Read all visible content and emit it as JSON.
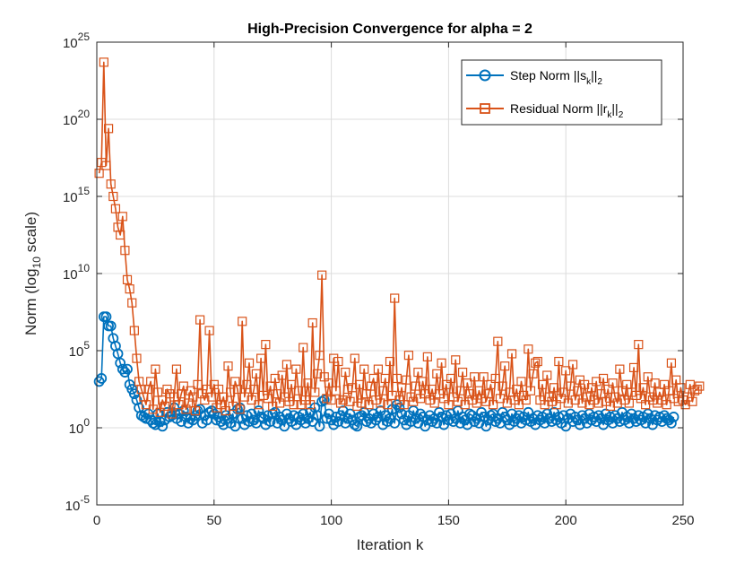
{
  "chart_data": {
    "type": "line",
    "title": "High-Precision Convergence for alpha = 2",
    "xlabel": "Iteration k",
    "ylabel": {
      "main": "Norm (log",
      "sub": "10",
      "tail": " scale)"
    },
    "xlim": [
      0,
      250
    ],
    "ylim_exponent": [
      -5,
      25
    ],
    "yscale": "log",
    "xticks": [
      0,
      50,
      100,
      150,
      200,
      250
    ],
    "yticks_exponent": [
      -5,
      0,
      5,
      10,
      15,
      20,
      25
    ],
    "ytick_base": "10",
    "grid": true,
    "legend_position": "top-right",
    "series": [
      {
        "name": "Step Norm ||s_k||_2",
        "legend": {
          "main": "Step Norm ||s",
          "sub": "k",
          "mid": "||",
          "sub2": "2"
        },
        "color": "#0072BD",
        "marker": "circle",
        "x_start": 1,
        "log10_values": [
          3.0,
          3.2,
          7.2,
          7.2,
          6.6,
          6.6,
          5.8,
          5.3,
          4.8,
          4.2,
          3.8,
          3.6,
          3.8,
          2.8,
          2.5,
          2.2,
          1.8,
          1.3,
          0.8,
          0.7,
          0.6,
          0.9,
          0.5,
          0.3,
          0.2,
          0.9,
          0.4,
          0.1,
          0.5,
          1.0,
          0.7,
          0.8,
          1.3,
          0.6,
          0.9,
          0.4,
          1.1,
          0.7,
          0.3,
          0.6,
          0.5,
          0.8,
          1.1,
          1.2,
          0.3,
          0.8,
          0.5,
          1.0,
          1.1,
          0.9,
          0.5,
          0.7,
          0.4,
          0.2,
          0.8,
          0.6,
          0.3,
          0.9,
          0.1,
          1.2,
          1.3,
          0.6,
          0.2,
          0.8,
          0.4,
          0.9,
          0.5,
          0.3,
          1.1,
          0.7,
          0.6,
          0.2,
          0.8,
          0.4,
          0.9,
          1.0,
          0.3,
          0.7,
          0.5,
          0.1,
          0.9,
          0.6,
          0.4,
          0.8,
          0.2,
          0.7,
          0.5,
          0.9,
          0.3,
          0.6,
          1.0,
          0.4,
          1.3,
          0.8,
          0.1,
          1.7,
          1.8,
          0.6,
          0.9,
          0.5,
          0.2,
          0.7,
          0.4,
          0.8,
          1.1,
          0.3,
          0.6,
          0.9,
          0.5,
          0.2,
          0.1,
          0.7,
          0.8,
          1.0,
          0.4,
          0.6,
          0.3,
          0.9,
          0.5,
          0.7,
          1.1,
          0.2,
          0.8,
          0.4,
          0.6,
          1.2,
          0.3,
          1.5,
          1.3,
          0.9,
          0.5,
          0.2,
          0.8,
          0.4,
          1.1,
          0.6,
          0.3,
          0.9,
          0.7,
          0.1,
          0.5,
          0.8,
          0.4,
          0.6,
          0.3,
          1.0,
          0.7,
          0.2,
          0.8,
          0.5,
          0.9,
          0.4,
          0.6,
          1.1,
          0.3,
          0.7,
          0.5,
          0.2,
          0.9,
          0.8,
          0.4,
          0.6,
          0.3,
          1.0,
          0.7,
          0.1,
          0.5,
          0.8,
          0.9,
          0.4,
          0.6,
          0.3,
          1.0,
          0.7,
          0.5,
          0.2,
          0.9,
          0.4,
          0.6,
          0.8,
          0.3,
          0.7,
          0.5,
          1.0,
          0.4,
          0.6,
          0.2,
          0.8,
          0.5,
          0.7,
          0.3,
          0.9,
          0.6,
          0.4,
          1.0,
          0.5,
          0.7,
          0.3,
          0.8,
          0.1,
          0.6,
          0.9,
          0.4,
          0.7,
          0.5,
          0.2,
          0.8,
          0.6,
          0.3,
          0.9,
          0.5,
          0.7,
          0.4,
          0.8,
          0.6,
          0.2,
          0.9,
          0.5,
          0.7,
          0.3,
          0.8,
          0.6,
          0.4,
          1.0,
          0.5,
          0.7,
          0.3,
          0.9,
          0.6,
          0.4,
          0.8,
          0.5,
          0.7,
          0.3,
          0.9,
          0.6,
          0.2,
          0.8,
          0.5,
          0.7,
          0.4,
          0.8,
          0.6,
          0.5,
          0.3,
          0.7
        ]
      },
      {
        "name": "Residual Norm ||r_k||_2",
        "legend": {
          "main": "Residual Norm ||r",
          "sub": "k",
          "mid": "||",
          "sub2": "2"
        },
        "color": "#D95319",
        "marker": "square",
        "x_start": 1,
        "log10_values": [
          16.5,
          17.2,
          23.7,
          17.0,
          19.4,
          15.8,
          15.0,
          14.2,
          13.0,
          12.5,
          13.7,
          11.5,
          9.6,
          9.0,
          8.1,
          6.3,
          4.5,
          3.0,
          2.5,
          2.0,
          1.5,
          2.5,
          3.0,
          1.2,
          3.8,
          2.3,
          1.0,
          1.8,
          1.4,
          2.5,
          2.2,
          0.9,
          2.0,
          3.8,
          1.5,
          2.2,
          2.7,
          1.2,
          1.6,
          2.4,
          2.0,
          1.1,
          2.8,
          7.0,
          2.2,
          1.8,
          2.5,
          6.3,
          2.0,
          2.8,
          1.3,
          2.5,
          1.5,
          2.0,
          1.1,
          4.0,
          2.3,
          1.4,
          3.0,
          2.5,
          1.2,
          6.9,
          2.0,
          2.8,
          4.2,
          1.8,
          2.5,
          3.5,
          1.5,
          4.5,
          2.1,
          5.4,
          1.9,
          2.7,
          1.4,
          3.2,
          2.2,
          1.6,
          3.4,
          2.0,
          4.1,
          1.7,
          2.8,
          1.5,
          3.8,
          2.4,
          1.5,
          5.2,
          1.8,
          2.9,
          1.5,
          6.8,
          2.3,
          3.5,
          4.7,
          9.9,
          3.3,
          1.9,
          2.9,
          1.8,
          4.5,
          2.4,
          4.3,
          1.6,
          1.8,
          3.6,
          2.5,
          1.7,
          2.6,
          4.5,
          1.4,
          2.8,
          1.6,
          3.8,
          2.2,
          1.5,
          2.7,
          3.2,
          1.8,
          3.8,
          1.6,
          2.4,
          3.2,
          1.5,
          4.3,
          2.1,
          8.4,
          3.2,
          1.8,
          2.6,
          1.5,
          3.1,
          4.7,
          2.0,
          1.7,
          2.7,
          3.6,
          1.9,
          3.0,
          2.2,
          4.6,
          1.8,
          2.5,
          1.6,
          3.5,
          2.2,
          4.2,
          1.9,
          2.8,
          1.5,
          3.2,
          2.0,
          4.4,
          1.7,
          2.4,
          3.6,
          1.5,
          2.9,
          2.2,
          1.8,
          3.3,
          1.6,
          2.4,
          1.9,
          3.3,
          1.7,
          2.2,
          2.8,
          1.5,
          3.2,
          5.6,
          1.9,
          2.7,
          4.0,
          1.6,
          2.3,
          4.8,
          1.8,
          2.5,
          1.5,
          3.0,
          2.1,
          1.8,
          5.1,
          2.4,
          3.5,
          4.2,
          4.3,
          1.8,
          2.8,
          1.5,
          3.4,
          2.0,
          1.7,
          2.6,
          1.5,
          4.3,
          1.9,
          2.3,
          3.7,
          1.6,
          2.7,
          4.1,
          1.8,
          2.4,
          3.1,
          1.6,
          2.8,
          2.0,
          1.5,
          2.6,
          1.8,
          3.0,
          1.6,
          2.2,
          3.2,
          1.7,
          2.5,
          1.4,
          2.9,
          2.0,
          1.6,
          3.8,
          2.4,
          1.8,
          2.8,
          1.6,
          2.3,
          3.9,
          2.1,
          5.4,
          1.9,
          2.6,
          1.5,
          3.3,
          2.0,
          1.8,
          2.9,
          1.6,
          2.3,
          1.8,
          2.8,
          1.5,
          2.4,
          4.2,
          1.9,
          3.1,
          1.7,
          2.6,
          1.8,
          1.5,
          2.0,
          2.8,
          1.7,
          2.4,
          2.5,
          2.7
        ]
      }
    ]
  }
}
